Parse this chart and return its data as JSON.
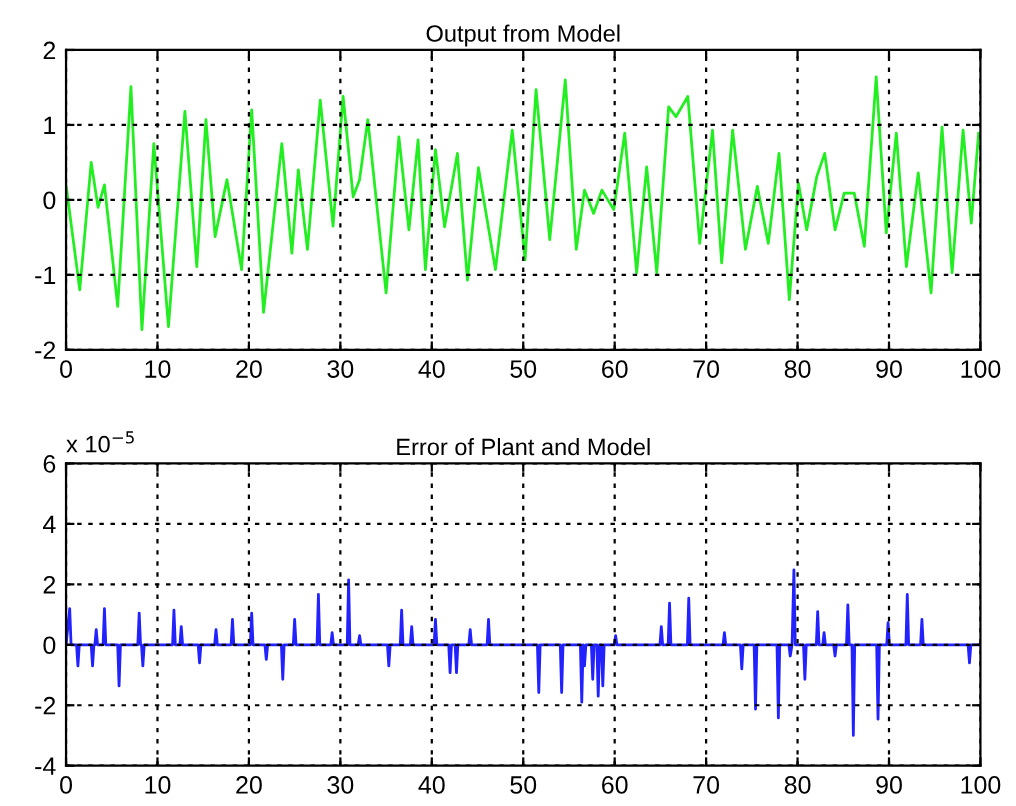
{
  "chart_data": [
    {
      "type": "line",
      "title": "Output from Model",
      "xlim": [
        0,
        100
      ],
      "ylim": [
        -2,
        2
      ],
      "xticks": [
        0,
        10,
        20,
        30,
        40,
        50,
        60,
        70,
        80,
        90,
        100
      ],
      "yticks": [
        -2,
        -1,
        0,
        1,
        2
      ],
      "grid": true,
      "line_style": "solid",
      "series": [
        {
          "color": "#22ee22",
          "x": [
            0.02,
            1.5,
            2.75,
            3.5,
            4.2,
            5.65,
            7.1,
            8.3,
            9.6,
            11.2,
            13.0,
            14.3,
            15.3,
            16.3,
            17.6,
            19.2,
            20.3,
            21.6,
            23.6,
            24.7,
            25.4,
            26.4,
            27.8,
            29.2,
            30.3,
            31.4,
            32.1,
            33.0,
            35.0,
            36.4,
            37.5,
            38.5,
            39.3,
            40.4,
            41.4,
            42.8,
            43.9,
            45.1,
            46.96,
            48.8,
            50.2,
            51.4,
            52.9,
            54.6,
            55.8,
            56.7,
            57.7,
            58.6,
            59.9,
            61.1,
            62.4,
            63.5,
            64.6,
            65.9,
            66.7,
            68.0,
            69.3,
            70.7,
            71.7,
            72.9,
            74.3,
            75.6,
            76.8,
            77.97,
            79.1,
            80.1,
            81.0,
            82.1,
            82.97,
            84.1,
            85.1,
            86.2,
            87.3,
            88.6,
            89.7,
            90.8,
            91.9,
            93.2,
            94.6,
            95.8,
            96.9,
            98.1,
            99.0,
            99.8
          ],
          "values": [
            0.18,
            -1.2,
            0.5,
            -0.1,
            0.2,
            -1.42,
            1.51,
            -1.73,
            0.75,
            -1.69,
            1.18,
            -0.89,
            1.07,
            -0.49,
            0.27,
            -0.93,
            1.2,
            -1.5,
            0.75,
            -0.71,
            0.4,
            -0.66,
            1.33,
            -0.35,
            1.38,
            0.04,
            0.27,
            1.07,
            -1.24,
            0.84,
            -0.4,
            0.8,
            -0.93,
            0.67,
            -0.36,
            0.62,
            -1.07,
            0.43,
            -0.93,
            0.93,
            -0.8,
            1.47,
            -0.53,
            1.6,
            -0.66,
            0.13,
            -0.18,
            0.13,
            -0.13,
            0.89,
            -0.97,
            0.44,
            -0.97,
            1.24,
            1.11,
            1.38,
            -0.58,
            0.93,
            -0.84,
            0.93,
            -0.66,
            0.18,
            -0.58,
            0.62,
            -1.33,
            0.22,
            -0.4,
            0.31,
            0.62,
            -0.4,
            0.09,
            0.09,
            -0.62,
            1.64,
            -0.44,
            0.89,
            -0.89,
            0.36,
            -1.24,
            0.97,
            -0.97,
            0.93,
            -0.31,
            0.89
          ]
        }
      ]
    },
    {
      "type": "line",
      "title": "Error of Plant and Model",
      "annotations": [
        "x 10$^{−5}$"
      ],
      "xlim": [
        0,
        100
      ],
      "ylim": [
        -4,
        6
      ],
      "xticks": [
        0,
        10,
        20,
        30,
        40,
        50,
        60,
        70,
        80,
        90,
        100
      ],
      "yticks": [
        -4,
        -2,
        0,
        2,
        4,
        6
      ],
      "grid": true,
      "line_style": "solid",
      "series": [
        {
          "color": "#2222ff",
          "x": [
            0,
            0.4,
            0.55,
            1.15,
            1.3,
            1.45,
            2.75,
            2.9,
            3.05,
            3.15,
            3.3,
            3.45,
            4.05,
            4.2,
            4.35,
            5.65,
            5.8,
            5.95,
            7.85,
            8.0,
            8.15,
            8.25,
            8.4,
            8.55,
            11.65,
            11.8,
            11.95,
            12.45,
            12.6,
            12.75,
            14.45,
            14.6,
            14.75,
            16.25,
            16.4,
            16.55,
            18.05,
            18.2,
            18.35,
            20.15,
            20.3,
            20.45,
            21.75,
            21.9,
            22.05,
            23.55,
            23.7,
            23.85,
            24.85,
            25.0,
            25.15,
            27.45,
            27.6,
            27.75,
            28.95,
            29.1,
            29.25,
            30.75,
            30.9,
            31.05,
            31.95,
            32.1,
            32.25,
            35.15,
            35.3,
            35.45,
            36.55,
            36.7,
            36.85,
            37.65,
            37.8,
            37.95,
            40.25,
            40.4,
            40.55,
            41.85,
            42.0,
            42.15,
            42.55,
            42.7,
            42.85,
            44.05,
            44.2,
            44.35,
            46.05,
            46.2,
            46.35,
            51.55,
            51.7,
            51.85,
            54.05,
            54.2,
            54.35,
            56.25,
            56.4,
            56.55,
            56.7,
            56.85,
            57.45,
            57.6,
            57.75,
            58.05,
            58.2,
            58.35,
            58.55,
            58.7,
            58.85,
            59.95,
            60.1,
            60.25,
            64.95,
            65.1,
            65.25,
            65.85,
            66.0,
            66.15,
            67.95,
            68.1,
            68.25,
            71.85,
            72.0,
            72.15,
            73.75,
            73.9,
            74.05,
            75.25,
            75.4,
            75.55,
            77.75,
            77.9,
            78.05,
            79.05,
            79.2,
            79.4,
            79.6,
            79.75,
            80.65,
            80.8,
            80.95,
            82.05,
            82.2,
            82.35,
            82.75,
            82.9,
            83.05,
            83.95,
            84.1,
            84.25,
            85.35,
            85.5,
            85.65,
            85.95,
            86.1,
            86.25,
            88.65,
            88.8,
            88.95,
            89.75,
            89.9,
            90.05,
            91.85,
            92.0,
            92.15,
            93.45,
            93.6,
            93.75,
            98.65,
            98.8,
            98.95,
            100
          ],
          "values": [
            0,
            1.2,
            0,
            0,
            -0.7,
            0,
            0,
            -0.7,
            0,
            0,
            0.5,
            0,
            0,
            1.2,
            0,
            0,
            -1.36,
            0,
            0,
            1.05,
            0,
            0,
            -0.7,
            0,
            0,
            1.15,
            0,
            0,
            0.6,
            0,
            0,
            -0.6,
            0,
            0,
            0.5,
            0,
            0,
            0.84,
            0,
            0,
            1.05,
            0,
            0,
            -0.48,
            0,
            0,
            -1.14,
            0,
            0,
            0.84,
            0,
            0,
            1.67,
            0,
            0,
            0.4,
            0,
            0,
            2.15,
            0,
            0,
            0.3,
            0,
            0,
            -0.7,
            0,
            0,
            1.15,
            0,
            0,
            0.6,
            0,
            0,
            0.84,
            0,
            0,
            -0.92,
            0,
            0,
            -0.92,
            0,
            0,
            0.5,
            0,
            0,
            0.84,
            0,
            0,
            -1.58,
            0,
            0,
            -1.58,
            0,
            0,
            -1.9,
            0,
            -0.7,
            0,
            0,
            -1.14,
            0,
            0,
            -1.7,
            0,
            0,
            -1.36,
            0,
            0,
            0.3,
            0,
            0,
            0.6,
            0,
            0,
            1.38,
            0,
            0,
            1.54,
            0,
            0,
            0.4,
            0,
            0,
            -0.8,
            0,
            0,
            -2.13,
            0,
            0,
            -2.42,
            0,
            0,
            -0.37,
            0,
            2.48,
            0,
            0,
            -1.14,
            0,
            0,
            1.1,
            0,
            0,
            0.4,
            0,
            0,
            -0.37,
            0,
            0,
            1.32,
            0,
            0,
            -3.0,
            0,
            0,
            -2.46,
            0,
            0,
            0.73,
            0,
            0,
            1.67,
            0,
            0,
            0.84,
            0,
            0,
            -0.6,
            0,
            0
          ]
        }
      ]
    }
  ]
}
